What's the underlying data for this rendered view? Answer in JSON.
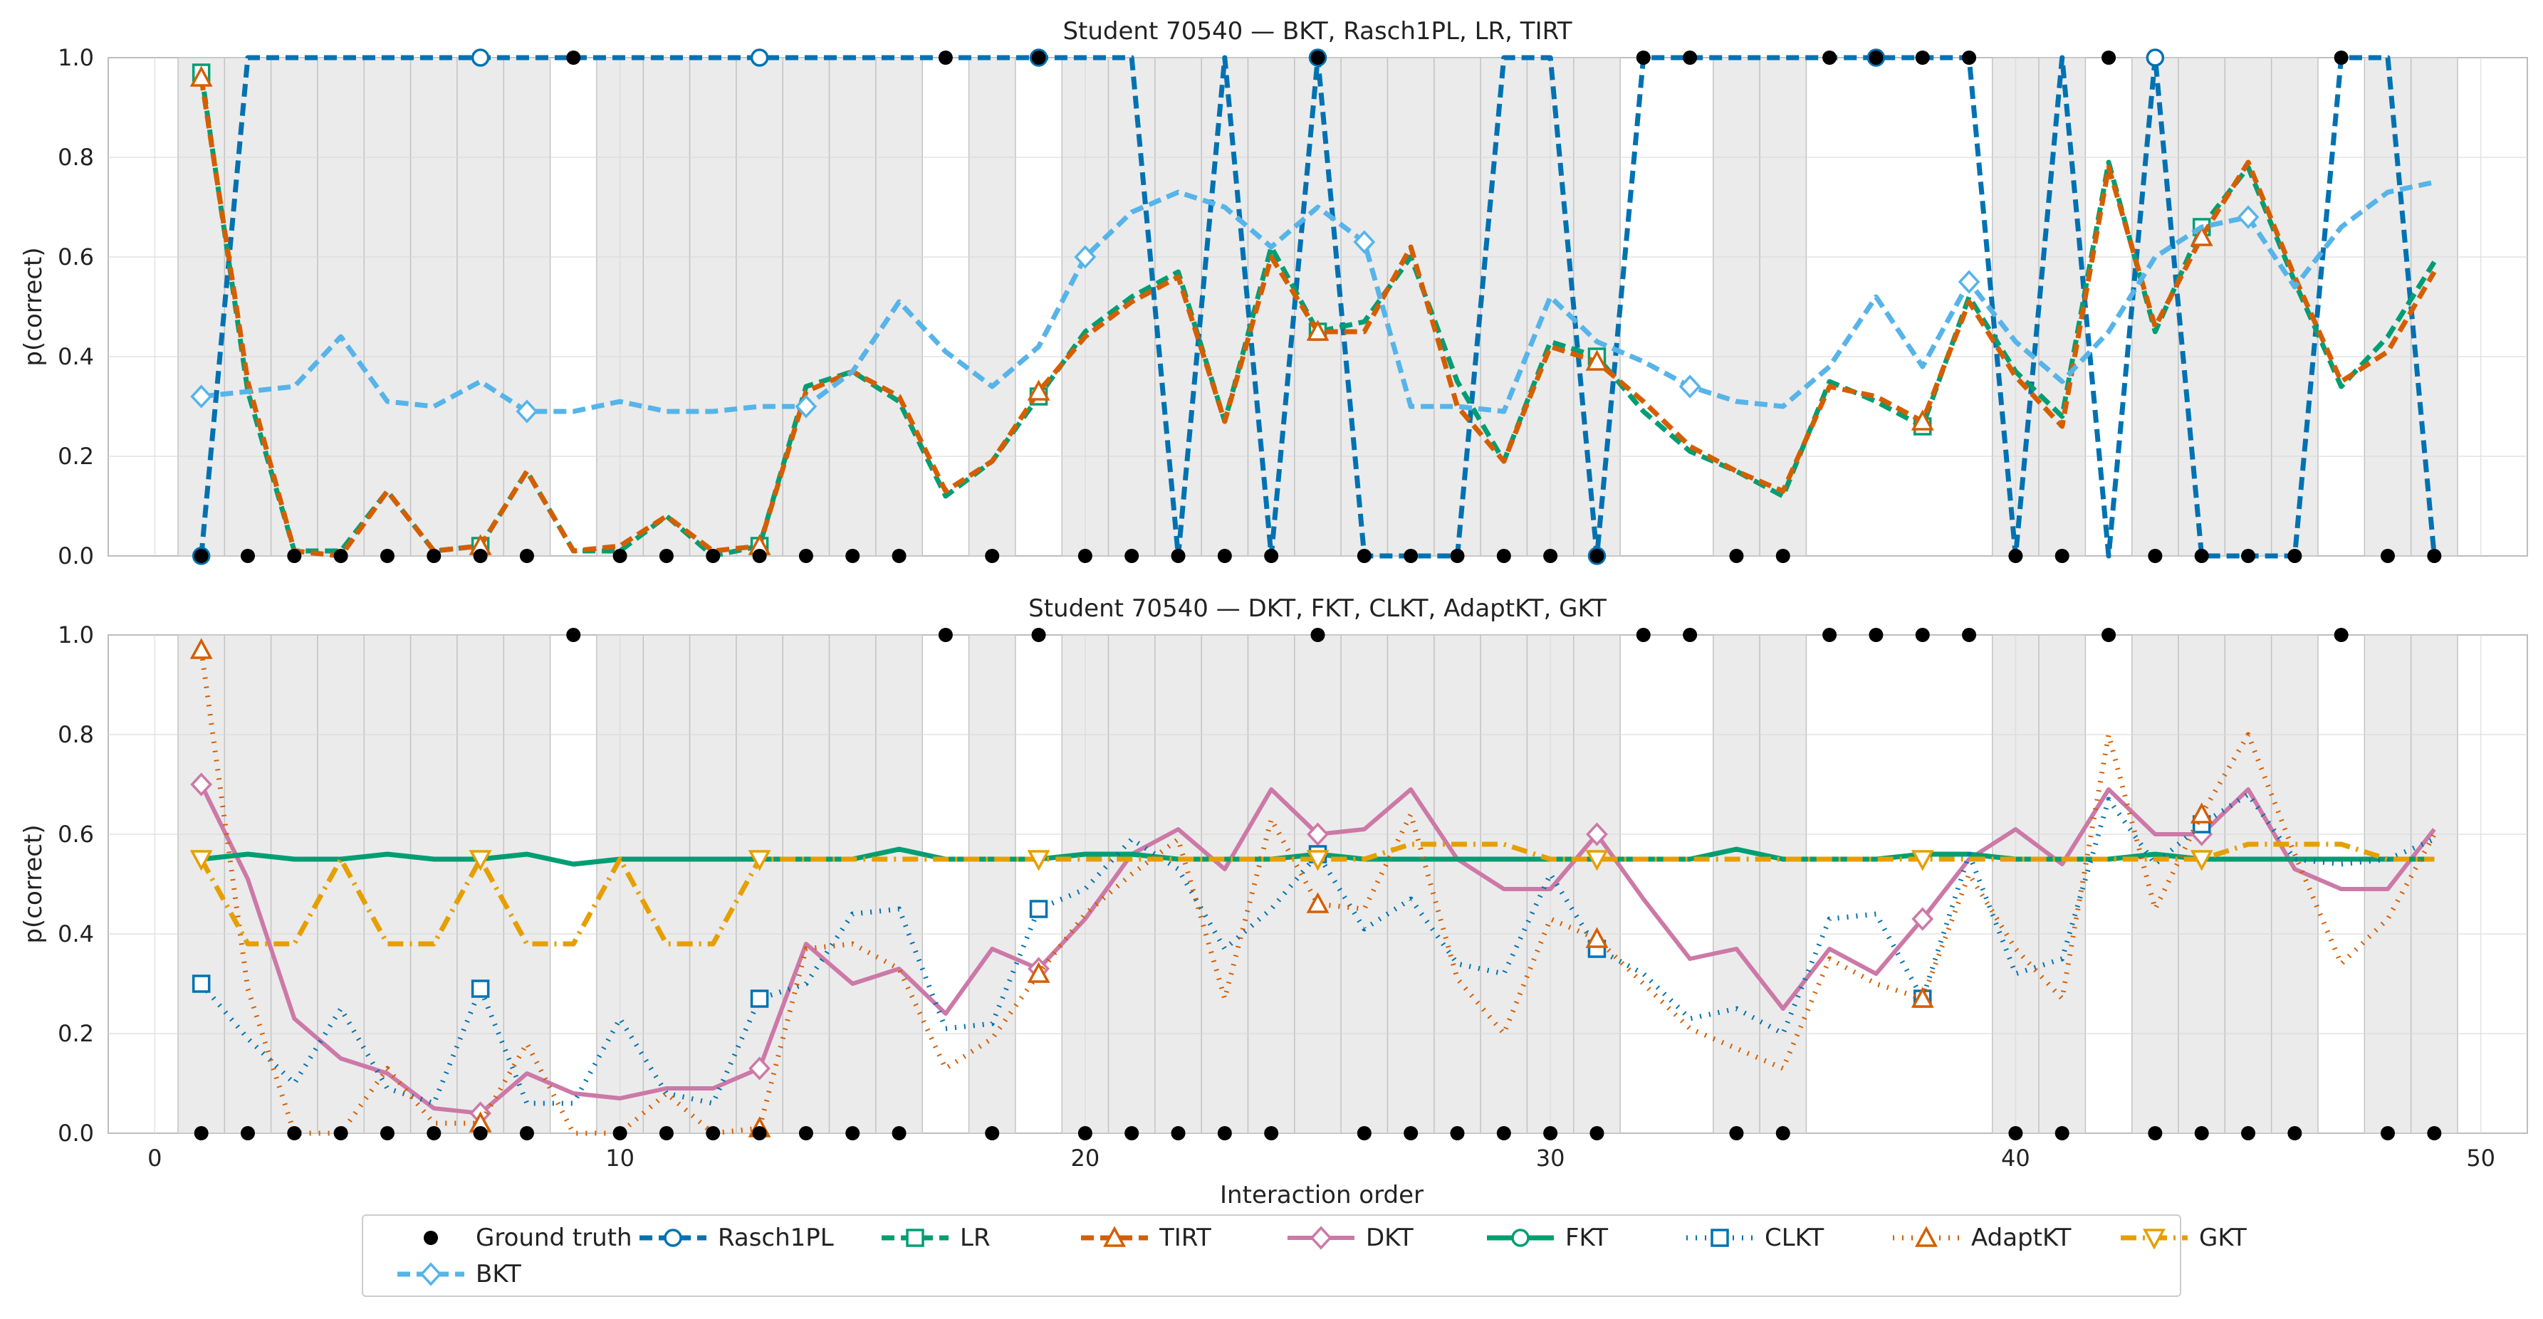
{
  "chart_data": [
    {
      "type": "line",
      "title": "Student 70540 — BKT, Rasch1PL, LR, TIRT",
      "xlabel": "",
      "ylabel": "p(correct)",
      "xlim": [
        -1,
        51
      ],
      "ylim": [
        0,
        1
      ],
      "grid": true,
      "yticks": [
        "0.0",
        "0.2",
        "0.4",
        "0.6",
        "0.8",
        "1.0"
      ],
      "x": [
        1,
        2,
        3,
        4,
        5,
        6,
        7,
        8,
        9,
        10,
        11,
        12,
        13,
        14,
        15,
        16,
        17,
        18,
        19,
        20,
        21,
        22,
        23,
        24,
        25,
        26,
        27,
        28,
        29,
        30,
        31,
        32,
        33,
        34,
        35,
        36,
        37,
        38,
        39,
        40,
        41,
        42,
        43,
        44,
        45,
        46,
        47,
        48,
        49
      ],
      "ground_truth": [
        0,
        0,
        0,
        0,
        0,
        0,
        0,
        0,
        1,
        0,
        0,
        0,
        0,
        0,
        0,
        0,
        1,
        0,
        1,
        0,
        0,
        0,
        0,
        0,
        1,
        0,
        0,
        0,
        0,
        0,
        0,
        1,
        1,
        0,
        0,
        1,
        1,
        1,
        1,
        0,
        0,
        1,
        0,
        0,
        0,
        0,
        1,
        0,
        0
      ],
      "shaded_x": [
        1,
        2,
        3,
        4,
        5,
        6,
        7,
        8,
        10,
        11,
        12,
        13,
        14,
        15,
        16,
        18,
        20,
        21,
        22,
        23,
        24,
        25,
        26,
        27,
        28,
        29,
        30,
        31,
        34,
        35,
        40,
        41,
        43,
        44,
        45,
        46,
        48,
        49
      ],
      "series": [
        {
          "name": "Rasch1PL",
          "color": "#0072b2",
          "values": [
            0.0,
            1.0,
            1.0,
            1.0,
            1.0,
            1.0,
            1.0,
            1.0,
            1.0,
            1.0,
            1.0,
            1.0,
            1.0,
            1.0,
            1.0,
            1.0,
            1.0,
            1.0,
            1.0,
            1.0,
            1.0,
            0.0,
            1.0,
            0.0,
            1.0,
            0.0,
            0.0,
            0.0,
            1.0,
            1.0,
            0.0,
            1.0,
            1.0,
            1.0,
            1.0,
            1.0,
            1.0,
            1.0,
            1.0,
            0.0,
            1.0,
            0.0,
            1.0,
            0.0,
            0.0,
            0.0,
            1.0,
            1.0,
            0.0
          ]
        },
        {
          "name": "LR",
          "color": "#009e73",
          "values": [
            0.97,
            0.33,
            0.01,
            0.01,
            0.13,
            0.01,
            0.02,
            0.17,
            0.01,
            0.01,
            0.08,
            0.0,
            0.02,
            0.34,
            0.37,
            0.31,
            0.12,
            0.19,
            0.32,
            0.45,
            0.52,
            0.57,
            0.27,
            0.62,
            0.45,
            0.47,
            0.6,
            0.35,
            0.19,
            0.43,
            0.4,
            0.29,
            0.21,
            0.17,
            0.12,
            0.35,
            0.31,
            0.26,
            0.52,
            0.37,
            0.28,
            0.79,
            0.45,
            0.66,
            0.78,
            0.55,
            0.34,
            0.44,
            0.59
          ]
        },
        {
          "name": "TIRT",
          "color": "#d55e00",
          "values": [
            0.96,
            0.35,
            0.01,
            0.0,
            0.13,
            0.01,
            0.02,
            0.17,
            0.01,
            0.02,
            0.08,
            0.01,
            0.02,
            0.33,
            0.37,
            0.32,
            0.13,
            0.19,
            0.33,
            0.44,
            0.51,
            0.56,
            0.27,
            0.6,
            0.45,
            0.45,
            0.62,
            0.3,
            0.19,
            0.42,
            0.39,
            0.31,
            0.22,
            0.17,
            0.13,
            0.34,
            0.32,
            0.27,
            0.51,
            0.36,
            0.26,
            0.78,
            0.46,
            0.64,
            0.79,
            0.56,
            0.35,
            0.41,
            0.57
          ]
        },
        {
          "name": "BKT",
          "color": "#56b4e9",
          "values": [
            0.32,
            0.33,
            0.34,
            0.44,
            0.31,
            0.3,
            0.35,
            0.29,
            0.29,
            0.31,
            0.29,
            0.29,
            0.3,
            0.3,
            0.37,
            0.51,
            0.41,
            0.34,
            0.42,
            0.6,
            0.69,
            0.73,
            0.7,
            0.62,
            0.7,
            0.63,
            0.3,
            0.3,
            0.29,
            0.52,
            0.43,
            0.39,
            0.34,
            0.31,
            0.3,
            0.38,
            0.52,
            0.38,
            0.55,
            0.43,
            0.35,
            0.45,
            0.6,
            0.66,
            0.68,
            0.54,
            0.66,
            0.73,
            0.75
          ]
        }
      ]
    },
    {
      "type": "line",
      "title": "Student 70540 — DKT, FKT, CLKT, AdaptKT, GKT",
      "xlabel": "Interaction order",
      "ylabel": "p(correct)",
      "xlim": [
        -1,
        51
      ],
      "ylim": [
        0,
        1
      ],
      "grid": true,
      "xticks": [
        "0",
        "10",
        "20",
        "30",
        "40",
        "50"
      ],
      "yticks": [
        "0.0",
        "0.2",
        "0.4",
        "0.6",
        "0.8",
        "1.0"
      ],
      "series": [
        {
          "name": "DKT",
          "color": "#cc79a7",
          "values": [
            0.7,
            0.51,
            0.23,
            0.15,
            0.12,
            0.05,
            0.04,
            0.12,
            0.08,
            0.07,
            0.09,
            0.09,
            0.13,
            0.38,
            0.3,
            0.33,
            0.24,
            0.37,
            0.33,
            0.43,
            0.56,
            0.61,
            0.53,
            0.69,
            0.6,
            0.61,
            0.69,
            0.55,
            0.49,
            0.49,
            0.6,
            0.47,
            0.35,
            0.37,
            0.25,
            0.37,
            0.32,
            0.43,
            0.55,
            0.61,
            0.54,
            0.69,
            0.6,
            0.6,
            0.69,
            0.53,
            0.49,
            0.49,
            0.61
          ]
        },
        {
          "name": "FKT",
          "color": "#009e73",
          "values": [
            0.55,
            0.56,
            0.55,
            0.55,
            0.56,
            0.55,
            0.55,
            0.56,
            0.54,
            0.55,
            0.55,
            0.55,
            0.55,
            0.55,
            0.55,
            0.57,
            0.55,
            0.55,
            0.55,
            0.56,
            0.56,
            0.55,
            0.55,
            0.55,
            0.56,
            0.55,
            0.55,
            0.55,
            0.55,
            0.55,
            0.55,
            0.55,
            0.55,
            0.57,
            0.55,
            0.55,
            0.55,
            0.56,
            0.56,
            0.55,
            0.55,
            0.55,
            0.56,
            0.55,
            0.55,
            0.55,
            0.55,
            0.55,
            0.55
          ]
        },
        {
          "name": "CLKT",
          "color": "#0072b2",
          "values": [
            0.3,
            0.19,
            0.1,
            0.25,
            0.09,
            0.06,
            0.29,
            0.06,
            0.06,
            0.23,
            0.08,
            0.06,
            0.27,
            0.3,
            0.44,
            0.45,
            0.21,
            0.22,
            0.45,
            0.49,
            0.59,
            0.53,
            0.37,
            0.45,
            0.56,
            0.41,
            0.47,
            0.34,
            0.32,
            0.52,
            0.37,
            0.32,
            0.23,
            0.25,
            0.2,
            0.43,
            0.44,
            0.27,
            0.56,
            0.32,
            0.35,
            0.67,
            0.54,
            0.62,
            0.68,
            0.55,
            0.54,
            0.55,
            0.59
          ]
        },
        {
          "name": "AdaptKT",
          "color": "#d55e00",
          "values": [
            0.97,
            0.29,
            0.0,
            0.0,
            0.13,
            0.02,
            0.02,
            0.18,
            0.0,
            0.0,
            0.08,
            0.0,
            0.01,
            0.37,
            0.38,
            0.33,
            0.13,
            0.19,
            0.32,
            0.44,
            0.52,
            0.59,
            0.27,
            0.63,
            0.46,
            0.45,
            0.64,
            0.31,
            0.2,
            0.43,
            0.39,
            0.3,
            0.21,
            0.17,
            0.13,
            0.35,
            0.3,
            0.27,
            0.52,
            0.37,
            0.27,
            0.8,
            0.45,
            0.64,
            0.8,
            0.56,
            0.34,
            0.43,
            0.6
          ]
        },
        {
          "name": "GKT",
          "color": "#e69f00",
          "values": [
            0.55,
            0.38,
            0.38,
            0.55,
            0.38,
            0.38,
            0.55,
            0.38,
            0.38,
            0.55,
            0.38,
            0.38,
            0.55,
            0.55,
            0.55,
            0.55,
            0.55,
            0.55,
            0.55,
            0.55,
            0.55,
            0.55,
            0.55,
            0.55,
            0.55,
            0.55,
            0.58,
            0.58,
            0.58,
            0.55,
            0.55,
            0.55,
            0.55,
            0.55,
            0.55,
            0.55,
            0.55,
            0.55,
            0.55,
            0.55,
            0.55,
            0.55,
            0.55,
            0.55,
            0.58,
            0.58,
            0.58,
            0.55,
            0.55
          ]
        }
      ]
    }
  ],
  "legend": [
    "Ground truth",
    "Rasch1PL",
    "LR",
    "TIRT",
    "DKT",
    "FKT",
    "CLKT",
    "AdaptKT",
    "GKT",
    "BKT"
  ]
}
